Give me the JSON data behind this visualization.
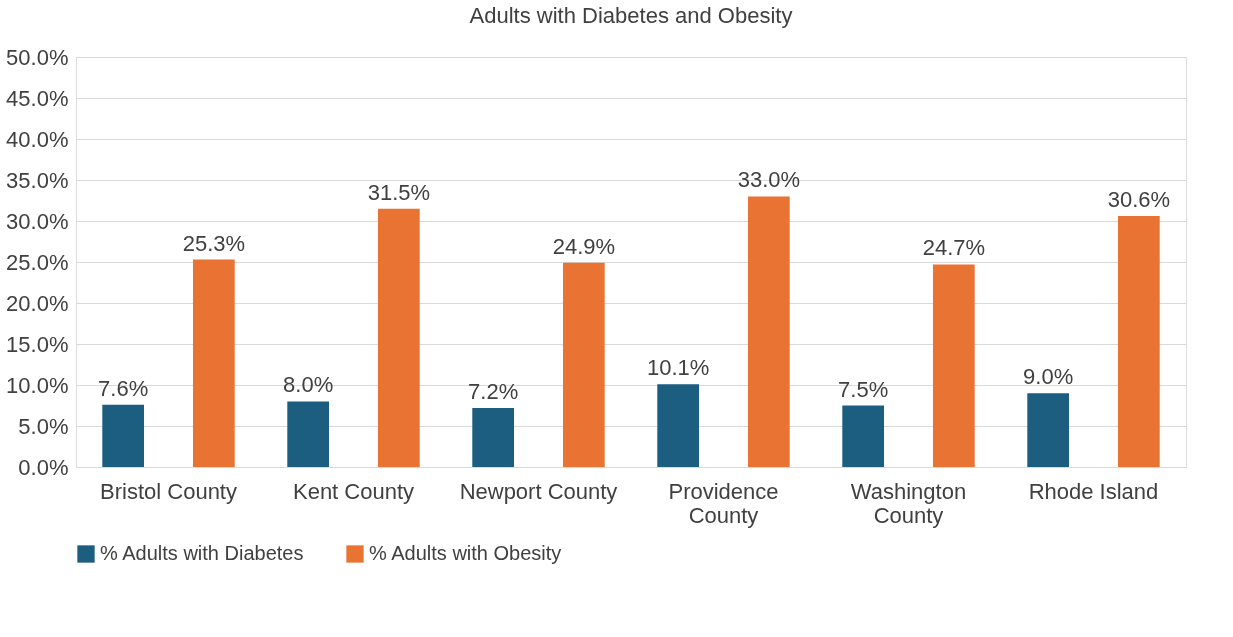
{
  "chart_data": {
    "type": "bar",
    "title": "Adults with Diabetes and Obesity",
    "categories": [
      "Bristol County",
      "Kent County",
      "Newport County",
      "Providence County",
      "Washington County",
      "Rhode Island"
    ],
    "series": [
      {
        "name": "% Adults with Diabetes",
        "color": "#1b5e80",
        "values": [
          7.6,
          8.0,
          7.2,
          10.1,
          7.5,
          9.0
        ],
        "value_labels": [
          "7.6%",
          "8.0%",
          "7.2%",
          "10.1%",
          "7.5%",
          "9.0%"
        ]
      },
      {
        "name": "% Adults with Obesity",
        "color": "#e97333",
        "values": [
          25.3,
          31.5,
          24.9,
          33.0,
          24.7,
          30.6
        ],
        "value_labels": [
          "25.3%",
          "31.5%",
          "24.9%",
          "33.0%",
          "24.7%",
          "30.6%"
        ]
      }
    ],
    "ylim": [
      0,
      50
    ],
    "yticks": [
      {
        "value": 0,
        "label": "0.0%"
      },
      {
        "value": 5,
        "label": "5.0%"
      },
      {
        "value": 10,
        "label": "10.0%"
      },
      {
        "value": 15,
        "label": "15.0%"
      },
      {
        "value": 20,
        "label": "20.0%"
      },
      {
        "value": 25,
        "label": "25.0%"
      },
      {
        "value": 30,
        "label": "30.0%"
      },
      {
        "value": 35,
        "label": "35.0%"
      },
      {
        "value": 40,
        "label": "40.0%"
      },
      {
        "value": 45,
        "label": "45.0%"
      },
      {
        "value": 50,
        "label": "50.0%"
      }
    ],
    "grid": "y",
    "legend": "bottom"
  }
}
